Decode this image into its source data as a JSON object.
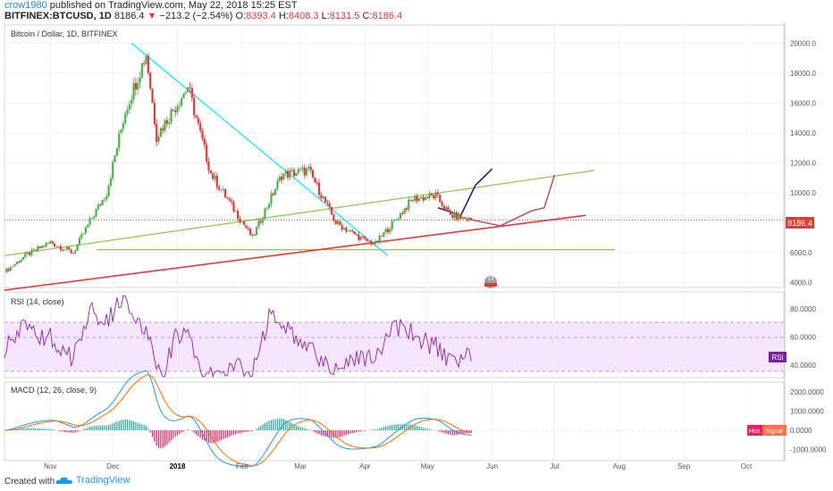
{
  "header": {
    "author": "crow1980",
    "published_text": "published on TradingView.com, May 22, 2018 15:25 EST",
    "symbol": "BITFINEX:BTCUSD, 1D",
    "last": "8186.4",
    "change": "−213.2 (−2.54%)",
    "open_label": "O:",
    "open": "8393.4",
    "high_label": "H:",
    "high": "8408.3",
    "low_label": "L:",
    "low": "8131.5",
    "close_label": "C:",
    "close": "8186.4"
  },
  "price_pane": {
    "legend": "Bitcoin / Dollar, 1D, BITFINEX",
    "price_tag": "8186.4",
    "event_badge": "13"
  },
  "rsi_pane": {
    "legend": "RSI (14, close)",
    "badge": "RSI"
  },
  "macd_pane": {
    "legend": "MACD (12, 26, close, 9)",
    "badge_hist": "Hist",
    "badge_signal": "Signal"
  },
  "axis": {
    "price_ticks": [
      "20000.0",
      "18000.0",
      "16000.0",
      "14000.0",
      "12000.0",
      "10000.0",
      "6000.0",
      "4000.0"
    ],
    "rsi_ticks": [
      "80.0000",
      "60.0000",
      "40.0000"
    ],
    "macd_ticks": [
      "2000.0000",
      "1000.0000",
      "0.0000",
      "-1000.0000"
    ],
    "time_ticks": [
      "Nov",
      "Dec",
      "2018",
      "Feb",
      "Mar",
      "Apr",
      "May",
      "Jun",
      "Jul",
      "Aug",
      "Sep",
      "Oct"
    ]
  },
  "chart_data": {
    "type": "candlestick",
    "title": "Bitcoin / Dollar, 1D, BITFINEX",
    "ylim": [
      3500,
      20500
    ],
    "price_series": [
      {
        "date": "2017-10-10",
        "value": 4700
      },
      {
        "date": "2017-10-20",
        "value": 5800
      },
      {
        "date": "2017-11-01",
        "value": 6700
      },
      {
        "date": "2017-11-12",
        "value": 6000
      },
      {
        "date": "2017-11-20",
        "value": 8100
      },
      {
        "date": "2017-11-28",
        "value": 10000
      },
      {
        "date": "2017-12-07",
        "value": 15500
      },
      {
        "date": "2017-12-17",
        "value": 19300
      },
      {
        "date": "2017-12-22",
        "value": 13800
      },
      {
        "date": "2018-01-06",
        "value": 17100
      },
      {
        "date": "2018-01-17",
        "value": 11300
      },
      {
        "date": "2018-02-06",
        "value": 7000
      },
      {
        "date": "2018-02-20",
        "value": 11200
      },
      {
        "date": "2018-03-05",
        "value": 11500
      },
      {
        "date": "2018-03-18",
        "value": 8000
      },
      {
        "date": "2018-04-01",
        "value": 6800
      },
      {
        "date": "2018-04-06",
        "value": 6600
      },
      {
        "date": "2018-04-24",
        "value": 9600
      },
      {
        "date": "2018-05-05",
        "value": 9800
      },
      {
        "date": "2018-05-12",
        "value": 8500
      },
      {
        "date": "2018-05-22",
        "value": 8186.4
      }
    ],
    "drawings": [
      {
        "type": "trendline",
        "color": "#00e5ff",
        "from": {
          "date": "2017-12-10",
          "value": 20000
        },
        "to": {
          "date": "2018-04-12",
          "value": 5800
        }
      },
      {
        "type": "trendline",
        "color": "#8bc34a",
        "from": {
          "date": "2017-10-10",
          "value": 5800
        },
        "to": {
          "date": "2018-07-20",
          "value": 11500
        }
      },
      {
        "type": "horizontal",
        "color": "#8bc34a",
        "value": 6200,
        "from": "2017-11-23",
        "to": "2018-07-30"
      },
      {
        "type": "trendline",
        "color": "#e53935",
        "from": {
          "date": "2017-10-10",
          "value": 3500
        },
        "to": {
          "date": "2018-07-16",
          "value": 8500
        }
      },
      {
        "type": "projection",
        "color": "#1a237e",
        "points": [
          {
            "date": "2018-05-06",
            "value": 9000
          },
          {
            "date": "2018-05-17",
            "value": 8500
          },
          {
            "date": "2018-05-24",
            "value": 10500
          },
          {
            "date": "2018-06-01",
            "value": 11600
          }
        ]
      },
      {
        "type": "projection",
        "color": "#b05c7c",
        "points": [
          {
            "date": "2018-05-22",
            "value": 8200
          },
          {
            "date": "2018-06-05",
            "value": 7800
          },
          {
            "date": "2018-06-20",
            "value": 8800
          },
          {
            "date": "2018-06-26",
            "value": 9000
          },
          {
            "date": "2018-07-01",
            "value": 11200
          }
        ]
      }
    ],
    "rsi_ylim": [
      30,
      90
    ],
    "macd_ylim": [
      -1200,
      2600
    ],
    "grid": true,
    "legend_placement": "top-left"
  }
}
